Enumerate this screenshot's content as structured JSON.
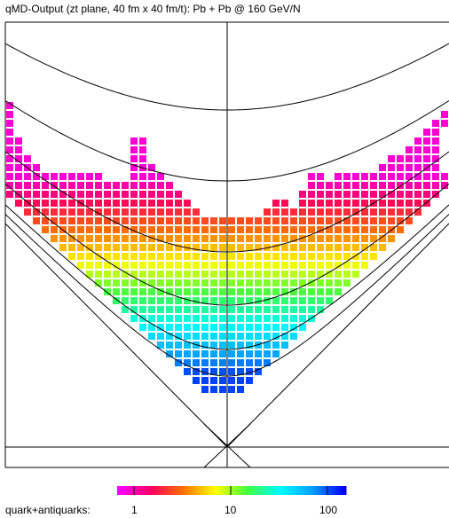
{
  "title": "qMD-Output (zt plane, 40 fm x 40 fm/t): Pb + Pb @ 160 GeV/N",
  "legend": {
    "label": "quark+antiquarks:",
    "ticks": [
      "1",
      "10",
      "100"
    ],
    "scale": "log",
    "colormap": [
      "#ff00ff",
      "#ff0060",
      "#ff7000",
      "#ffff00",
      "#40ff40",
      "#00ffff",
      "#00a0ff",
      "#0000ff"
    ]
  },
  "chart_data": {
    "type": "heatmap",
    "title": "qMD-Output (zt plane, 40 fm x 40 fm/t): Pb + Pb @ 160 GeV/N",
    "xlabel": "",
    "ylabel": "",
    "z_label": "quark+antiquarks:",
    "x_range_fm": [
      -20,
      20
    ],
    "t_range_fm": [
      0,
      40
    ],
    "grid": false,
    "color_scale": "log",
    "z_range": [
      1,
      200
    ],
    "description_of_fill": "grid of squares inside the light cone; density highest (blue, ~100-200) in the central lower V region, decreasing to yellow/red/magenta (~1-10) toward the upper and outer edges; two upward wings near the light-cone boundaries",
    "cells_rows_from_top": [
      [
        0
      ],
      [
        0,
        49,
        50
      ],
      [
        0,
        48,
        49
      ],
      [
        0,
        47,
        48
      ],
      [
        0,
        1,
        14,
        15,
        46,
        47,
        48
      ],
      [
        0,
        1,
        14,
        15,
        45,
        46,
        47,
        48
      ],
      [
        0,
        1,
        2,
        14,
        15,
        43,
        44,
        45,
        46,
        47,
        48
      ],
      [
        0,
        1,
        2,
        3,
        14,
        15,
        16,
        42,
        43,
        44,
        45,
        46,
        47,
        48
      ],
      [
        0,
        1,
        2,
        3,
        4,
        5,
        6,
        7,
        8,
        9,
        10,
        14,
        15,
        16,
        17,
        34,
        35,
        37,
        38,
        39,
        40,
        41,
        42,
        43,
        44,
        45,
        46,
        47,
        48,
        49
      ],
      [
        0,
        1,
        2,
        3,
        4,
        5,
        6,
        7,
        8,
        9,
        10,
        11,
        12,
        13,
        14,
        15,
        16,
        17,
        18,
        34,
        35,
        36,
        37,
        38,
        39,
        40,
        41,
        42,
        43,
        44,
        45,
        46,
        47,
        48,
        49
      ],
      [
        0,
        1,
        2,
        3,
        4,
        5,
        6,
        7,
        8,
        9,
        10,
        11,
        12,
        13,
        14,
        15,
        16,
        17,
        18,
        19,
        33,
        34,
        35,
        36,
        37,
        38,
        39,
        40,
        41,
        42,
        43,
        44,
        45,
        46,
        47,
        48
      ],
      [
        1,
        2,
        3,
        4,
        5,
        6,
        7,
        8,
        9,
        10,
        11,
        12,
        13,
        14,
        15,
        16,
        17,
        18,
        19,
        20,
        30,
        31,
        33,
        34,
        35,
        36,
        37,
        38,
        39,
        40,
        41,
        42,
        43,
        44,
        45,
        46,
        47
      ],
      [
        2,
        3,
        4,
        5,
        6,
        7,
        8,
        9,
        10,
        11,
        12,
        13,
        14,
        15,
        16,
        17,
        18,
        19,
        20,
        21,
        29,
        30,
        31,
        32,
        33,
        34,
        35,
        36,
        37,
        38,
        39,
        40,
        41,
        42,
        43,
        44,
        45,
        46
      ],
      [
        3,
        4,
        5,
        6,
        7,
        8,
        9,
        10,
        11,
        12,
        13,
        14,
        15,
        16,
        17,
        18,
        19,
        20,
        21,
        22,
        23,
        24,
        25,
        26,
        27,
        28,
        29,
        30,
        31,
        32,
        33,
        34,
        35,
        36,
        37,
        38,
        39,
        40,
        41,
        42,
        43,
        44,
        45
      ],
      [
        4,
        5,
        6,
        7,
        8,
        9,
        10,
        11,
        12,
        13,
        14,
        15,
        16,
        17,
        18,
        19,
        20,
        21,
        22,
        23,
        24,
        25,
        26,
        27,
        28,
        29,
        30,
        31,
        32,
        33,
        34,
        35,
        36,
        37,
        38,
        39,
        40,
        41,
        42,
        43,
        44
      ],
      [
        5,
        6,
        7,
        8,
        9,
        10,
        11,
        12,
        13,
        14,
        15,
        16,
        17,
        18,
        19,
        20,
        21,
        22,
        23,
        24,
        25,
        26,
        27,
        28,
        29,
        30,
        31,
        32,
        33,
        34,
        35,
        36,
        37,
        38,
        39,
        40,
        41,
        42,
        43
      ],
      [
        6,
        7,
        8,
        9,
        10,
        11,
        12,
        13,
        14,
        15,
        16,
        17,
        18,
        19,
        20,
        21,
        22,
        23,
        24,
        25,
        26,
        27,
        28,
        29,
        30,
        31,
        32,
        33,
        34,
        35,
        36,
        37,
        38,
        39,
        40,
        41,
        42
      ],
      [
        7,
        8,
        9,
        10,
        11,
        12,
        13,
        14,
        15,
        16,
        17,
        18,
        19,
        20,
        21,
        22,
        23,
        24,
        25,
        26,
        27,
        28,
        29,
        30,
        31,
        32,
        33,
        34,
        35,
        36,
        37,
        38,
        39,
        40,
        41
      ],
      [
        8,
        9,
        10,
        11,
        12,
        13,
        14,
        15,
        16,
        17,
        18,
        19,
        20,
        21,
        22,
        23,
        24,
        25,
        26,
        27,
        28,
        29,
        30,
        31,
        32,
        33,
        34,
        35,
        36,
        37,
        38,
        39,
        40
      ],
      [
        9,
        10,
        11,
        12,
        13,
        14,
        15,
        16,
        17,
        18,
        19,
        20,
        21,
        22,
        23,
        24,
        25,
        26,
        27,
        28,
        29,
        30,
        31,
        32,
        33,
        34,
        35,
        36,
        37,
        38,
        39
      ],
      [
        10,
        11,
        12,
        13,
        14,
        15,
        16,
        17,
        18,
        19,
        20,
        21,
        22,
        23,
        24,
        25,
        26,
        27,
        28,
        29,
        30,
        31,
        32,
        33,
        34,
        35,
        36,
        37,
        38
      ],
      [
        11,
        12,
        13,
        14,
        15,
        16,
        17,
        18,
        19,
        20,
        21,
        22,
        23,
        24,
        25,
        26,
        27,
        28,
        29,
        30,
        31,
        32,
        33,
        34,
        35,
        36,
        37
      ],
      [
        12,
        13,
        14,
        15,
        16,
        17,
        18,
        19,
        20,
        21,
        22,
        23,
        24,
        25,
        26,
        27,
        28,
        29,
        30,
        31,
        32,
        33,
        34,
        35,
        36
      ],
      [
        13,
        14,
        15,
        16,
        17,
        18,
        19,
        20,
        21,
        22,
        23,
        24,
        25,
        26,
        27,
        28,
        29,
        30,
        31,
        32,
        33,
        34,
        35
      ],
      [
        14,
        15,
        16,
        17,
        18,
        19,
        20,
        21,
        22,
        23,
        24,
        25,
        26,
        27,
        28,
        29,
        30,
        31,
        32,
        33,
        34
      ],
      [
        15,
        16,
        17,
        18,
        19,
        20,
        21,
        22,
        23,
        24,
        25,
        26,
        27,
        28,
        29,
        30,
        31,
        32,
        33
      ],
      [
        16,
        17,
        18,
        19,
        20,
        21,
        22,
        23,
        24,
        25,
        26,
        27,
        28,
        29,
        30,
        31,
        32
      ],
      [
        17,
        18,
        19,
        20,
        21,
        22,
        23,
        24,
        25,
        26,
        27,
        28,
        29,
        30,
        31
      ],
      [
        18,
        19,
        20,
        21,
        22,
        23,
        24,
        25,
        26,
        27,
        28,
        29,
        30
      ],
      [
        19,
        20,
        21,
        22,
        23,
        24,
        25,
        26,
        27,
        28,
        29
      ],
      [
        20,
        21,
        22,
        23,
        24,
        25,
        26,
        27,
        28
      ],
      [
        21,
        22,
        23,
        24,
        25,
        26,
        27
      ],
      [
        22,
        23,
        24,
        25,
        26
      ]
    ]
  }
}
